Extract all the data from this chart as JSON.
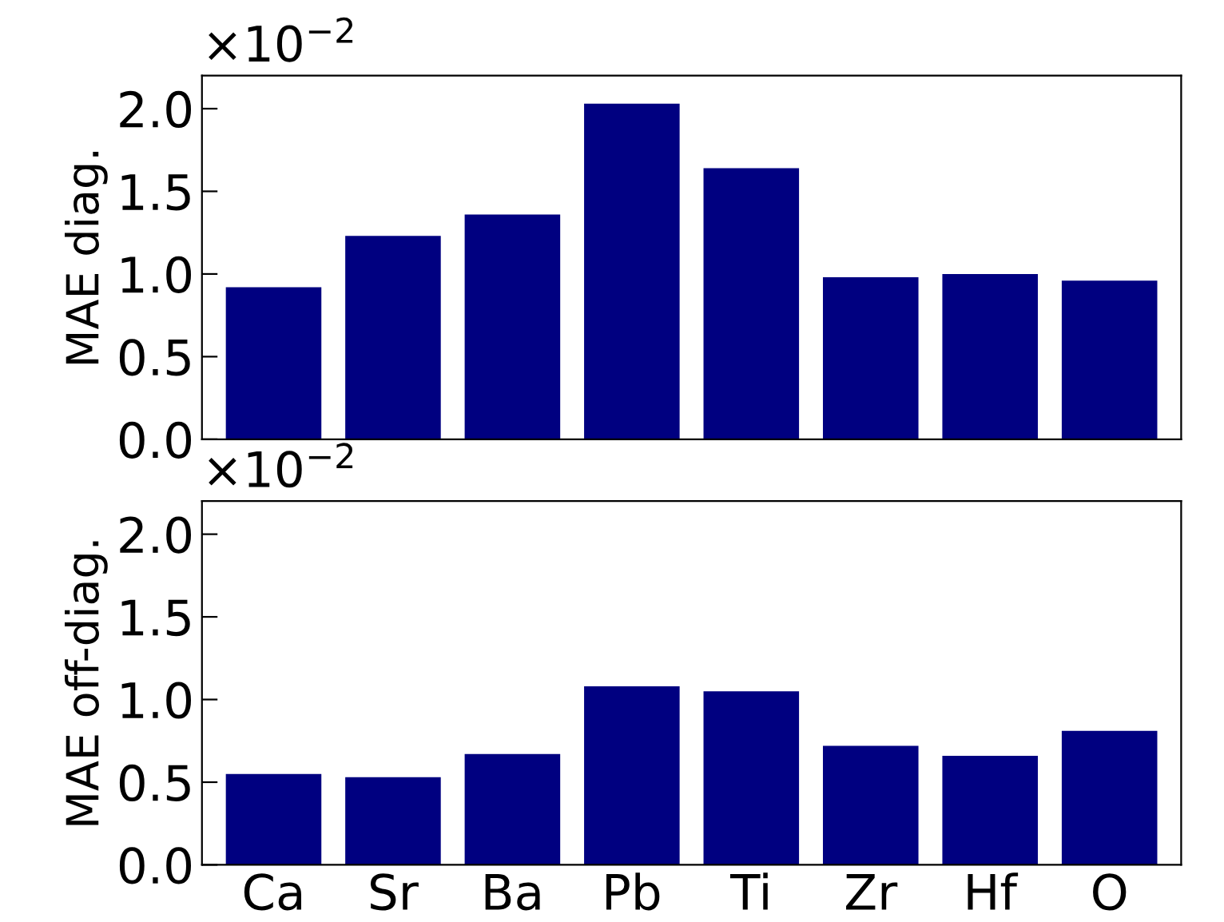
{
  "chart_data": [
    {
      "type": "bar",
      "ylabel": "MAE diag.",
      "categories": [
        null,
        null,
        null,
        null,
        null,
        null,
        null,
        null
      ],
      "values": [
        0.92,
        1.23,
        1.36,
        2.03,
        1.64,
        0.98,
        1.0,
        0.96
      ],
      "color": "#000080",
      "ylim": [
        0,
        2.2
      ],
      "yticks": [
        {
          "value": 0,
          "label": "0.0"
        },
        {
          "value": 0.5,
          "label": "0.5"
        },
        {
          "value": 1,
          "label": "1.0"
        },
        {
          "value": 1.5,
          "label": "1.5"
        },
        {
          "value": 2,
          "label": "2.0"
        }
      ],
      "annotations": [
        "×10$^{−2}$"
      ],
      "grid": false
    },
    {
      "type": "bar",
      "ylabel": "MAE off-diag.",
      "categories": [
        "Ca",
        "Sr",
        "Ba",
        "Pb",
        "Ti",
        "Zr",
        "Hf",
        "O"
      ],
      "values": [
        0.55,
        0.53,
        0.67,
        1.08,
        1.05,
        0.72,
        0.66,
        0.81
      ],
      "color": "#000080",
      "ylim": [
        0,
        2.2
      ],
      "yticks": [
        {
          "value": 0,
          "label": "0.0"
        },
        {
          "value": 0.5,
          "label": "0.5"
        },
        {
          "value": 1,
          "label": "1.0"
        },
        {
          "value": 1.5,
          "label": "1.5"
        },
        {
          "value": 2,
          "label": "2.0"
        }
      ],
      "annotations": [
        "×10$^{−2}$"
      ],
      "grid": false
    }
  ]
}
